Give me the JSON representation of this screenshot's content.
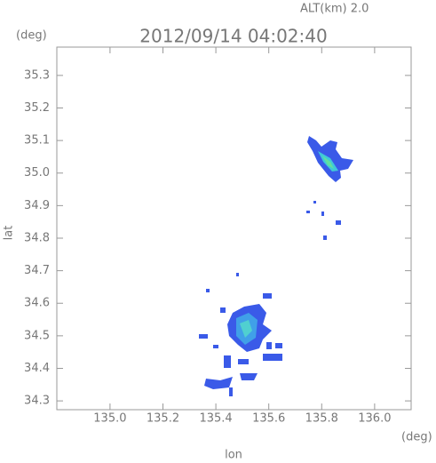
{
  "chart_data": {
    "type": "map",
    "title": "2012/09/14 04:02:40",
    "annotation": "ALT(km) 2.0",
    "xlabel": "lon",
    "ylabel": "lat",
    "xunit": "(deg)",
    "yunit": "(deg)",
    "xlim": [
      134.799,
      136.138
    ],
    "ylim": [
      34.273,
      35.387
    ],
    "xticks": [
      {
        "value": 135,
        "label": "135.0"
      },
      135.2,
      135.4,
      135.6,
      135.8,
      {
        "value": 136,
        "label": "136.0"
      }
    ],
    "yticks": [
      34.3,
      34.4,
      34.5,
      34.6,
      34.7,
      34.8,
      34.9,
      {
        "value": 35,
        "label": "35.0"
      },
      35.1,
      35.2,
      35.3
    ]
  }
}
